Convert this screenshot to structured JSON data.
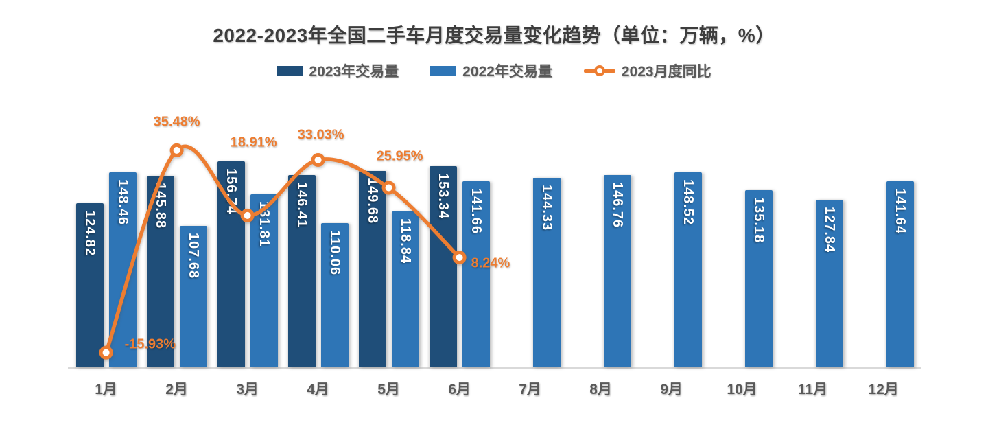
{
  "title": "2022-2023年全国二手车月度交易量变化趋势（单位：万辆，%）",
  "chart_data": {
    "type": "combo-bar-line",
    "categories": [
      "1月",
      "2月",
      "3月",
      "4月",
      "5月",
      "6月",
      "7月",
      "8月",
      "9月",
      "10月",
      "11月",
      "12月"
    ],
    "series": [
      {
        "name": "2023年交易量",
        "type": "bar",
        "color": "#1F4E79",
        "values": [
          124.82,
          145.88,
          156.74,
          146.41,
          149.68,
          153.34,
          null,
          null,
          null,
          null,
          null,
          null
        ]
      },
      {
        "name": "2022年交易量",
        "type": "bar",
        "color": "#2E75B6",
        "values": [
          148.46,
          107.68,
          131.81,
          110.06,
          118.84,
          141.66,
          144.33,
          146.76,
          148.52,
          135.18,
          127.84,
          141.64
        ]
      },
      {
        "name": "2023月度同比",
        "type": "line",
        "axis": "secondary",
        "color": "#ED7D31",
        "values": [
          -15.93,
          35.48,
          18.91,
          33.03,
          25.95,
          8.24,
          null,
          null,
          null,
          null,
          null,
          null
        ],
        "point_labels": [
          "-15.93%",
          "35.48%",
          "18.91%",
          "33.03%",
          "25.95%",
          "8.24%"
        ]
      }
    ],
    "y1lim": [
      0,
      180
    ],
    "y2lim": [
      -20,
      40
    ],
    "grid": false,
    "legend_position": "top",
    "x_axis_line": true
  }
}
